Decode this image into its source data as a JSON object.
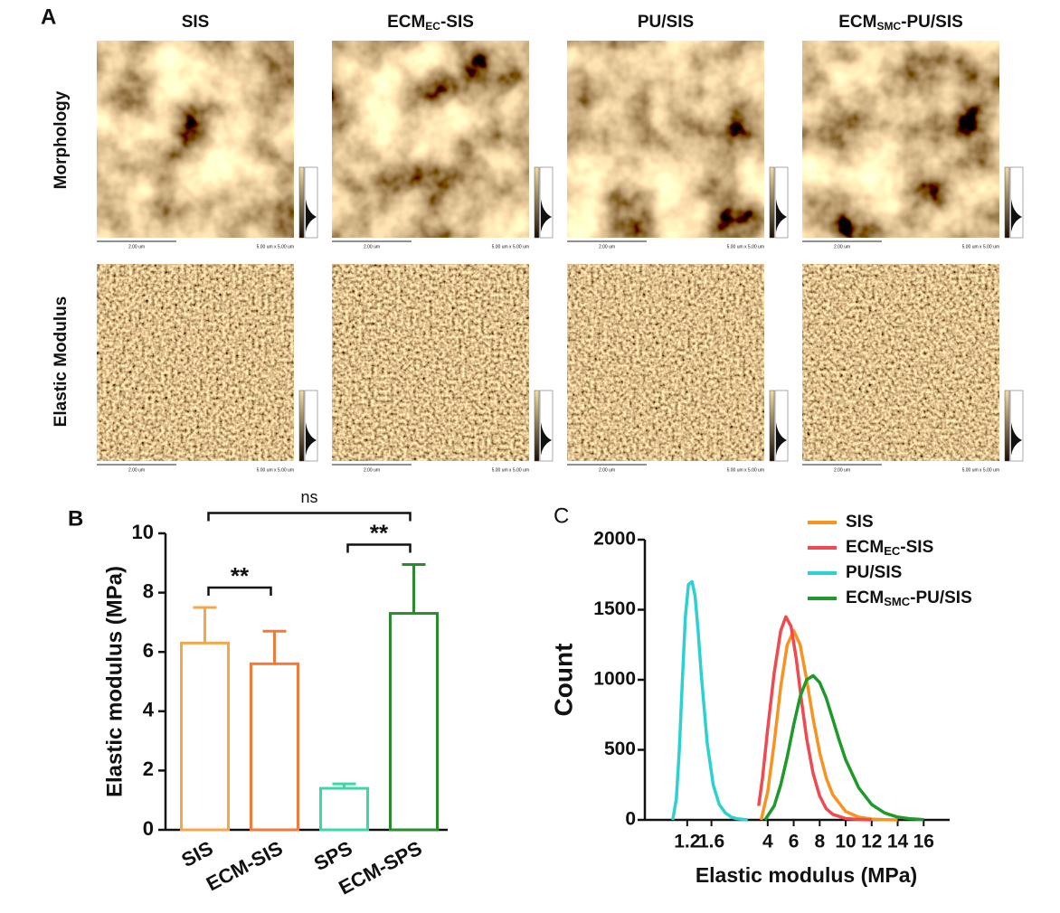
{
  "panel_a": {
    "label": "A",
    "columns": [
      [
        "SIS"
      ],
      [
        "ECM",
        "EC",
        "-SIS"
      ],
      [
        "PU/SIS"
      ],
      [
        "ECM",
        "SMC",
        "-PU/SIS"
      ]
    ],
    "rows": [
      "Morphology",
      "Elastic Modulus"
    ],
    "scale_bar": "2.00 um",
    "scan_size": "5.00 um x 5.00 um"
  },
  "chart_data": [
    {
      "type": "bar",
      "label": "B",
      "y_label": "Elastic modulus (MPa)",
      "categories": [
        "SIS",
        "ECM-SIS",
        "SPS",
        "ECM-SPS"
      ],
      "values": [
        6.3,
        5.6,
        1.4,
        7.3
      ],
      "errors": [
        1.2,
        1.1,
        0.15,
        1.65
      ],
      "colors": [
        "#f5a54a",
        "#f07a3a",
        "#3cd6a8",
        "#2b8a2e"
      ],
      "ylim": [
        0,
        10
      ],
      "yticks": [
        0,
        2,
        4,
        6,
        8,
        10
      ],
      "annotations": [
        {
          "label": "**",
          "between": [
            "SIS",
            "ECM-SIS"
          ]
        },
        {
          "label": "**",
          "between": [
            "SPS",
            "ECM-SPS"
          ]
        },
        {
          "label": "ns",
          "between": [
            "SIS",
            "ECM-SPS"
          ]
        }
      ]
    },
    {
      "type": "line",
      "label": "C",
      "x_label": "Elastic modulus (MPa)",
      "y_label": "Count",
      "xlim": [
        0.5,
        18
      ],
      "xbreak": [
        2.2,
        3.3
      ],
      "xticks": [
        1.2,
        1.6,
        4,
        6,
        8,
        10,
        12,
        14,
        16
      ],
      "ylim": [
        0,
        2000
      ],
      "yticks": [
        0,
        500,
        1000,
        1500,
        2000
      ],
      "legend": "upper right",
      "series": [
        {
          "name": [
            "SIS"
          ],
          "color": "#f7931e",
          "x": [
            3.5,
            4,
            4.5,
            5,
            5.5,
            6,
            6.5,
            7,
            7.5,
            8,
            8.5,
            9,
            10,
            11,
            12,
            13,
            14
          ],
          "values": [
            0,
            200,
            550,
            950,
            1250,
            1350,
            1250,
            1000,
            720,
            480,
            300,
            180,
            60,
            20,
            6,
            2,
            0
          ]
        },
        {
          "name": [
            "ECM",
            "EC",
            "-SIS"
          ],
          "color": "#f04a50",
          "x": [
            3.3,
            3.6,
            4,
            4.5,
            5,
            5.4,
            5.8,
            6.2,
            6.6,
            7,
            7.5,
            8,
            8.5,
            9,
            10,
            11,
            12
          ],
          "values": [
            100,
            300,
            650,
            1050,
            1350,
            1450,
            1380,
            1150,
            850,
            580,
            330,
            170,
            80,
            40,
            10,
            3,
            0
          ]
        },
        {
          "name": [
            "PU/SIS"
          ],
          "color": "#2ed1d1",
          "x": [
            0.96,
            1.02,
            1.07,
            1.12,
            1.17,
            1.22,
            1.28,
            1.33,
            1.38,
            1.43,
            1.53,
            1.63,
            1.73,
            1.83,
            1.93,
            2.03,
            2.13,
            2.2
          ],
          "values": [
            0,
            150,
            500,
            1000,
            1450,
            1680,
            1700,
            1600,
            1350,
            1050,
            550,
            250,
            110,
            50,
            20,
            8,
            3,
            0
          ]
        },
        {
          "name": [
            "ECM",
            "SMC",
            "-PU/SIS"
          ],
          "color": "#1e9a2a",
          "x": [
            3.8,
            4.5,
            5,
            5.5,
            6,
            6.5,
            7,
            7.5,
            8,
            8.5,
            9,
            9.5,
            10,
            11,
            12,
            13,
            14,
            15,
            16
          ],
          "values": [
            0,
            100,
            250,
            450,
            680,
            880,
            1000,
            1030,
            980,
            870,
            720,
            570,
            430,
            230,
            110,
            50,
            20,
            8,
            2
          ]
        }
      ]
    }
  ]
}
